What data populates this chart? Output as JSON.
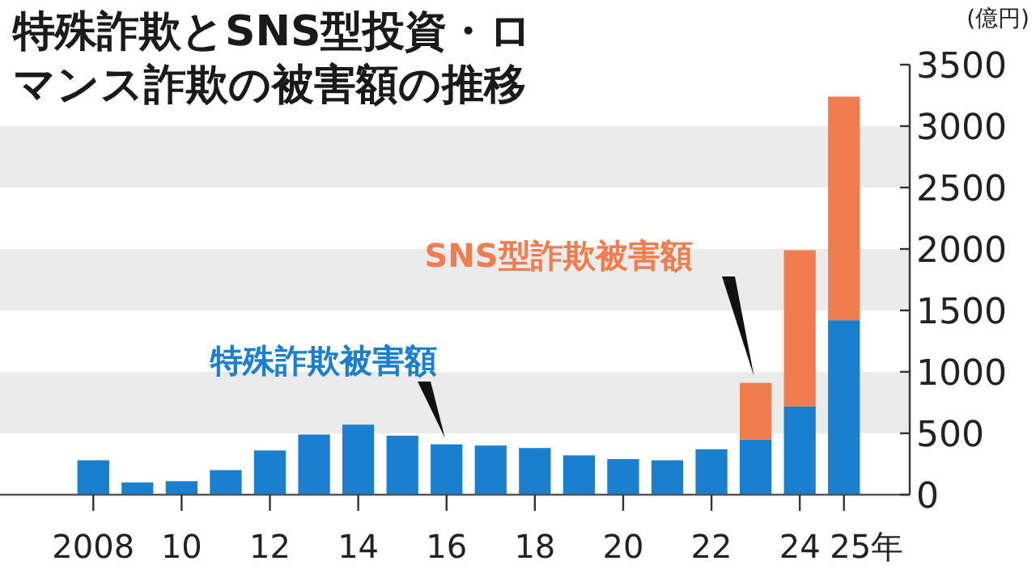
{
  "chart_data": {
    "type": "bar",
    "stacked": true,
    "title": "特殊詐欺とSNS型投資・ロマンス詐欺の被害額の推移",
    "ylabel": "(億円)",
    "categories": [
      "2008",
      null,
      "10",
      null,
      "12",
      null,
      "14",
      null,
      "16",
      null,
      "18",
      null,
      "20",
      null,
      "22",
      null,
      "24",
      "25年"
    ],
    "series": [
      {
        "name": "特殊詐欺被害額",
        "color": "#1a7fce",
        "values": [
          280,
          100,
          110,
          200,
          360,
          490,
          570,
          480,
          410,
          400,
          380,
          320,
          290,
          280,
          370,
          450,
          720,
          1420
        ]
      },
      {
        "name": "SNS型詐欺被害額",
        "color": "#ef7d4f",
        "values": [
          null,
          null,
          null,
          null,
          null,
          null,
          null,
          null,
          null,
          null,
          null,
          null,
          null,
          null,
          null,
          460,
          1270,
          1820
        ]
      }
    ],
    "ylim": [
      0,
      3500
    ],
    "yticks": [
      0,
      500,
      1000,
      1500,
      2000,
      2500,
      3000,
      3500
    ],
    "bands": [
      {
        "axis": "y",
        "from": 500,
        "to": 1000,
        "color": "#ebebeb"
      },
      {
        "axis": "y",
        "from": 1500,
        "to": 2000,
        "color": "#ebebeb"
      },
      {
        "axis": "y",
        "from": 2500,
        "to": 3000,
        "color": "#ebebeb"
      }
    ]
  }
}
